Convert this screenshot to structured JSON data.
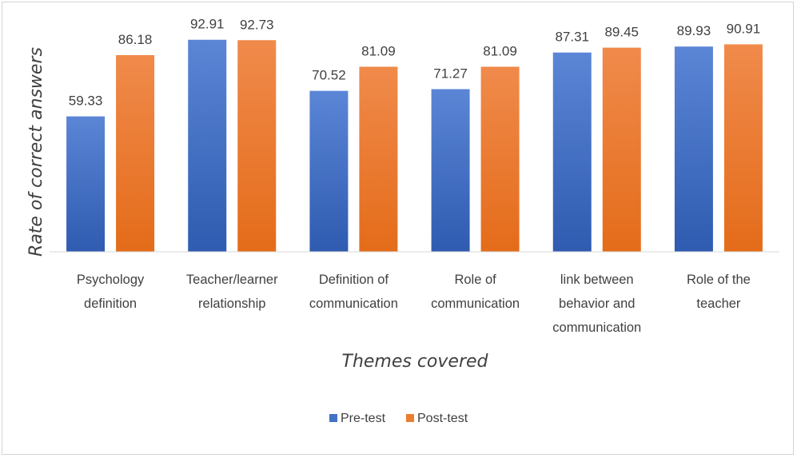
{
  "chart_data": {
    "type": "bar",
    "title": "",
    "xlabel": "Themes covered",
    "ylabel": "Rate of correct answers",
    "ylim": [
      0,
      100
    ],
    "grid": false,
    "legend_position": "bottom",
    "categories": [
      [
        "Psychology",
        "definition"
      ],
      [
        "Teacher/learner",
        "relationship"
      ],
      [
        "Definition of",
        "communication"
      ],
      [
        "Role of",
        "communication"
      ],
      [
        "link between",
        "behavior and",
        "communication"
      ],
      [
        "Role of the",
        "teacher"
      ]
    ],
    "series": [
      {
        "name": "Pre-test",
        "color": "#4472c4",
        "colorLight": "#5b86d6",
        "colorDark": "#2f5bb0",
        "values": [
          59.33,
          92.91,
          70.52,
          71.27,
          87.31,
          89.93
        ],
        "labels": [
          "59.33",
          "92.91",
          "70.52",
          "71.27",
          "87.31",
          "89.93"
        ]
      },
      {
        "name": "Post-test",
        "color": "#ed7d31",
        "colorLight": "#f08a4b",
        "colorDark": "#e46c1a",
        "values": [
          86.18,
          92.73,
          81.09,
          81.09,
          89.45,
          90.91
        ],
        "labels": [
          "86.18",
          "92.73",
          "81.09",
          "81.09",
          "89.45",
          "90.91"
        ]
      }
    ]
  }
}
